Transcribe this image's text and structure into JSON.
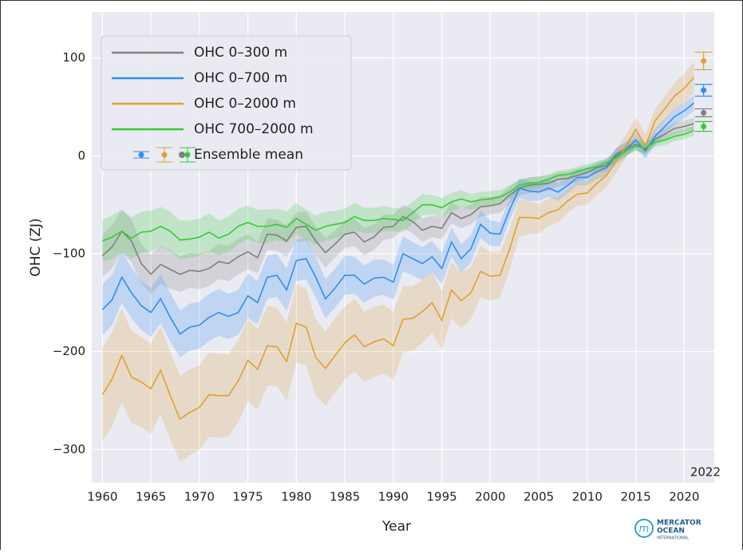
{
  "chart_data": {
    "type": "line",
    "x_label": "Year",
    "y_label": "OHC (ZJ)",
    "x": [
      1960,
      1961,
      1962,
      1963,
      1964,
      1965,
      1966,
      1967,
      1968,
      1969,
      1970,
      1971,
      1972,
      1973,
      1974,
      1975,
      1976,
      1977,
      1978,
      1979,
      1980,
      1981,
      1982,
      1983,
      1984,
      1985,
      1986,
      1987,
      1988,
      1989,
      1990,
      1991,
      1992,
      1993,
      1994,
      1995,
      1996,
      1997,
      1998,
      1999,
      2000,
      2001,
      2002,
      2003,
      2004,
      2005,
      2006,
      2007,
      2008,
      2009,
      2010,
      2011,
      2012,
      2013,
      2014,
      2015,
      2016,
      2017,
      2018,
      2019,
      2020,
      2021
    ],
    "xlim": [
      1958.9,
      2023.1
    ],
    "xticks": [
      1960,
      1965,
      1970,
      1975,
      1980,
      1985,
      1990,
      1995,
      2000,
      2005,
      2010,
      2015,
      2020
    ],
    "ylim": [
      -334,
      147
    ],
    "yticks": [
      {
        "value": -300,
        "label": "−300"
      },
      {
        "value": -200,
        "label": "−200"
      },
      {
        "value": -100,
        "label": "−100"
      },
      0,
      100
    ],
    "grid": true,
    "series": [
      {
        "name": "OHC 0–300 m",
        "color": "#808080",
        "values": [
          -102,
          -93,
          -77,
          -87,
          -110,
          -121,
          -111,
          -116,
          -121,
          -117,
          -118,
          -115,
          -108,
          -110,
          -103,
          -98,
          -104,
          -80,
          -81,
          -87,
          -73,
          -72,
          -87,
          -99,
          -90,
          -80,
          -78,
          -88,
          -83,
          -73,
          -72,
          -62,
          -67,
          -76,
          -72,
          -74,
          -58,
          -64,
          -60,
          -52,
          -51,
          -49,
          -40,
          -33,
          -30,
          -29,
          -28,
          -24,
          -23,
          -20,
          -17,
          -12,
          -10,
          2,
          7,
          12,
          7,
          17,
          22,
          28,
          30,
          33
        ],
        "errors": [
          22,
          22,
          22,
          22,
          20,
          20,
          20,
          20,
          18,
          18,
          18,
          18,
          18,
          18,
          18,
          18,
          16,
          16,
          16,
          16,
          15,
          15,
          15,
          15,
          14,
          14,
          14,
          14,
          13,
          13,
          12,
          12,
          12,
          12,
          11,
          11,
          11,
          10,
          10,
          10,
          9,
          9,
          9,
          8,
          8,
          8,
          8,
          7,
          7,
          7,
          6,
          6,
          6,
          6,
          6,
          6,
          6,
          6,
          6,
          6,
          6,
          6
        ]
      },
      {
        "name": "OHC 0–700 m",
        "color": "#2e8ef0",
        "values": [
          -157,
          -147,
          -124,
          -140,
          -153,
          -160,
          -146,
          -165,
          -182,
          -175,
          -173,
          -165,
          -160,
          -164,
          -160,
          -143,
          -150,
          -124,
          -122,
          -137,
          -107,
          -105,
          -124,
          -146,
          -135,
          -122,
          -122,
          -131,
          -125,
          -124,
          -129,
          -100,
          -105,
          -110,
          -103,
          -115,
          -88,
          -105,
          -95,
          -70,
          -79,
          -80,
          -55,
          -33,
          -36,
          -37,
          -33,
          -37,
          -30,
          -22,
          -22,
          -16,
          -12,
          0,
          7,
          16,
          5,
          20,
          30,
          40,
          46,
          54
        ],
        "errors": [
          26,
          26,
          26,
          26,
          25,
          25,
          25,
          25,
          24,
          24,
          24,
          24,
          24,
          23,
          23,
          23,
          22,
          22,
          22,
          22,
          21,
          21,
          21,
          20,
          20,
          20,
          19,
          19,
          19,
          18,
          18,
          18,
          17,
          17,
          16,
          16,
          15,
          15,
          14,
          14,
          13,
          12,
          11,
          10,
          10,
          9,
          9,
          9,
          8,
          8,
          8,
          8,
          8,
          8,
          8,
          8,
          8,
          8,
          8,
          8,
          8,
          8
        ]
      },
      {
        "name": "OHC 0–2000 m",
        "color": "#e0a030",
        "values": [
          -244,
          -228,
          -204,
          -226,
          -231,
          -238,
          -219,
          -245,
          -269,
          -262,
          -257,
          -244,
          -245,
          -245,
          -230,
          -209,
          -218,
          -194,
          -195,
          -210,
          -171,
          -175,
          -206,
          -217,
          -204,
          -191,
          -183,
          -195,
          -190,
          -187,
          -194,
          -167,
          -166,
          -159,
          -150,
          -168,
          -137,
          -148,
          -140,
          -118,
          -123,
          -122,
          -95,
          -63,
          -63,
          -64,
          -58,
          -55,
          -46,
          -39,
          -38,
          -28,
          -20,
          -5,
          10,
          27,
          10,
          36,
          48,
          61,
          69,
          80
        ],
        "errors": [
          48,
          48,
          48,
          47,
          46,
          46,
          45,
          45,
          44,
          44,
          43,
          43,
          43,
          42,
          42,
          42,
          41,
          41,
          40,
          40,
          40,
          39,
          39,
          38,
          38,
          37,
          37,
          36,
          36,
          35,
          35,
          34,
          33,
          32,
          31,
          30,
          29,
          28,
          27,
          26,
          25,
          23,
          21,
          19,
          17,
          15,
          14,
          13,
          12,
          12,
          12,
          12,
          12,
          12,
          12,
          12,
          12,
          12,
          13,
          14,
          15,
          16
        ]
      },
      {
        "name": "OHC 700–2000 m",
        "color": "#33cc33",
        "values": [
          -87,
          -83,
          -77,
          -84,
          -78,
          -77,
          -72,
          -77,
          -86,
          -85,
          -83,
          -78,
          -84,
          -80,
          -72,
          -68,
          -72,
          -72,
          -70,
          -73,
          -64,
          -70,
          -76,
          -72,
          -70,
          -68,
          -62,
          -66,
          -66,
          -64,
          -65,
          -66,
          -58,
          -50,
          -50,
          -53,
          -47,
          -44,
          -47,
          -45,
          -44,
          -42,
          -37,
          -30,
          -28,
          -27,
          -24,
          -20,
          -19,
          -16,
          -13,
          -11,
          -7,
          -2,
          5,
          10,
          8,
          14,
          16,
          20,
          22,
          26
        ],
        "errors": [
          22,
          22,
          22,
          21,
          21,
          21,
          20,
          20,
          20,
          19,
          19,
          19,
          18,
          18,
          18,
          17,
          17,
          17,
          16,
          16,
          16,
          15,
          15,
          15,
          14,
          14,
          14,
          13,
          13,
          13,
          12,
          12,
          11,
          11,
          10,
          10,
          9,
          9,
          8,
          8,
          8,
          7,
          7,
          6,
          6,
          6,
          5,
          5,
          5,
          5,
          5,
          5,
          5,
          5,
          5,
          5,
          5,
          5,
          5,
          5,
          5,
          5
        ]
      }
    ],
    "ensemble": {
      "label": "Ensemble mean",
      "year": 2022,
      "values": [
        44,
        67,
        97,
        30
      ],
      "errors": [
        4,
        6,
        9,
        5
      ]
    },
    "legend": "upper left",
    "logo": {
      "name": "MERCATOR",
      "name2": "OCEAN",
      "sub": "INTERNATIONAL"
    }
  }
}
